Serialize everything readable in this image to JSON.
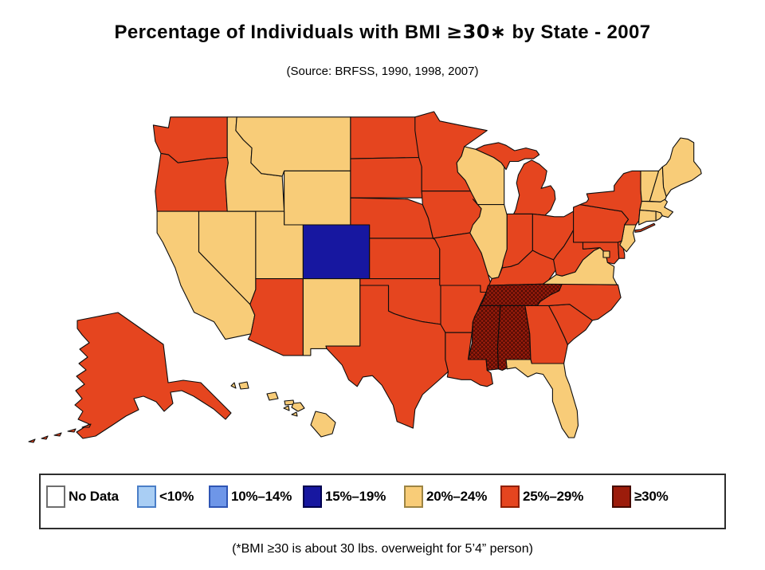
{
  "title_parts": {
    "prefix": "Percentage of Individuals with BMI ",
    "math": "≥30∗",
    "suffix": " by State - 2007"
  },
  "subtitle": "(Source: BRFSS, 1990, 1998, 2007)",
  "footnote": "(*BMI ≥30 is about 30 lbs. overweight for 5’4” person)",
  "chart_data": {
    "type": "choropleth",
    "region": "United States",
    "title": "Percentage of Individuals with BMI ≥30∗ by State - 2007",
    "source": "(Source: BRFSS, 1990, 1998, 2007)",
    "footnote": "(*BMI ≥30 is about 30 lbs. overweight for 5’4” person)",
    "legend_position": "bottom",
    "categories": [
      {
        "id": "no_data",
        "label": "No Data",
        "fill": "#FFFFFF",
        "border": "#6E6E6E",
        "hatched": false,
        "states": []
      },
      {
        "id": "lt10",
        "label": "<10%",
        "fill": "#A9CEF4",
        "border": "#4A7EC7",
        "hatched": false,
        "states": []
      },
      {
        "id": "b10_14",
        "label": "10%–14%",
        "fill": "#6E96E8",
        "border": "#2F55B4",
        "hatched": false,
        "states": []
      },
      {
        "id": "b15_19",
        "label": "15%–19%",
        "fill": "#1717A0",
        "border": "#00004D",
        "hatched": false,
        "states": [
          "CO"
        ]
      },
      {
        "id": "b20_24",
        "label": "20%–24%",
        "fill": "#F8CC78",
        "border": "#9C8443",
        "hatched": false,
        "states": [
          "CA",
          "NV",
          "MT",
          "ID",
          "WY",
          "UT",
          "NM",
          "WI",
          "IL",
          "FL",
          "VA",
          "NJ",
          "CT",
          "RI",
          "MA",
          "VT",
          "NH",
          "ME",
          "HI",
          "DC"
        ]
      },
      {
        "id": "b25_29",
        "label": "25%–29%",
        "fill": "#E5451F",
        "border": "#8F1F00",
        "hatched": false,
        "states": [
          "WA",
          "OR",
          "AZ",
          "ND",
          "SD",
          "NE",
          "KS",
          "OK",
          "TX",
          "MN",
          "IA",
          "MO",
          "AR",
          "LA",
          "MI",
          "IN",
          "OH",
          "KY",
          "WV",
          "MD",
          "DE",
          "PA",
          "NY",
          "NC",
          "SC",
          "GA",
          "AK"
        ]
      },
      {
        "id": "ge30",
        "label": "≥30%",
        "fill": "#9C1C0B",
        "border": "#450A00",
        "hatched": true,
        "states": [
          "MS",
          "AL",
          "TN"
        ]
      }
    ]
  }
}
